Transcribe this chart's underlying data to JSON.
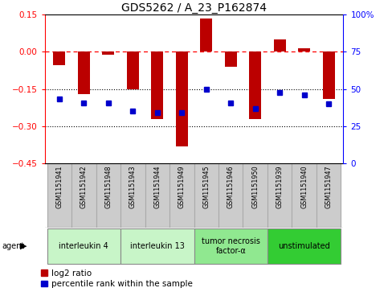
{
  "title": "GDS5262 / A_23_P162874",
  "samples": [
    "GSM1151941",
    "GSM1151942",
    "GSM1151948",
    "GSM1151943",
    "GSM1151944",
    "GSM1151949",
    "GSM1151945",
    "GSM1151946",
    "GSM1151950",
    "GSM1151939",
    "GSM1151940",
    "GSM1151947"
  ],
  "log2_ratio": [
    -0.055,
    -0.17,
    -0.01,
    -0.15,
    -0.27,
    -0.38,
    0.135,
    -0.06,
    -0.27,
    0.05,
    0.015,
    -0.19
  ],
  "blue_y_left": [
    -0.19,
    -0.205,
    -0.205,
    -0.24,
    -0.245,
    -0.245,
    -0.15,
    -0.205,
    -0.23,
    -0.165,
    -0.175,
    -0.21
  ],
  "agents": [
    {
      "label": "interleukin 4",
      "indices": [
        0,
        1,
        2
      ],
      "color": "#c8f5c8"
    },
    {
      "label": "interleukin 13",
      "indices": [
        3,
        4,
        5
      ],
      "color": "#c8f5c8"
    },
    {
      "label": "tumor necrosis\nfactor-α",
      "indices": [
        6,
        7,
        8
      ],
      "color": "#90e890"
    },
    {
      "label": "unstimulated",
      "indices": [
        9,
        10,
        11
      ],
      "color": "#33cc33"
    }
  ],
  "ylim_left": [
    -0.45,
    0.15
  ],
  "ylim_right": [
    0,
    100
  ],
  "yticks_left": [
    0.15,
    0.0,
    -0.15,
    -0.3,
    -0.45
  ],
  "yticks_right": [
    100,
    75,
    50,
    25,
    0
  ],
  "hlines_dotted": [
    -0.15,
    -0.3
  ],
  "bar_color": "#bb0000",
  "dot_color": "#0000cc",
  "bar_width": 0.5,
  "legend_items": [
    "log2 ratio",
    "percentile rank within the sample"
  ],
  "sample_box_color": "#cccccc",
  "sample_box_edge": "#aaaaaa"
}
